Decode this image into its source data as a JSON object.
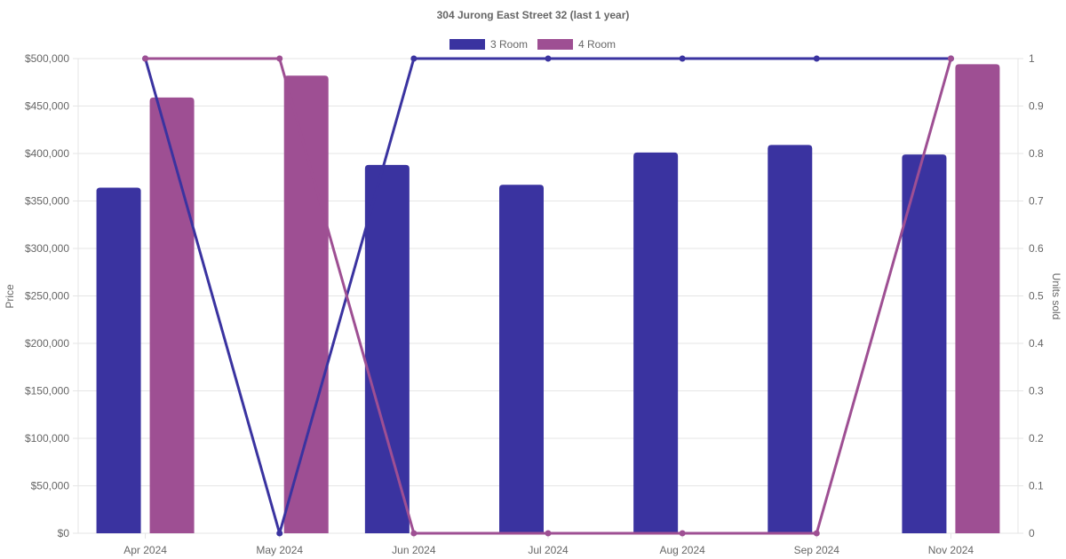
{
  "chart_data": {
    "type": "bar",
    "title": "304 Jurong East Street 32 (last 1 year)",
    "categories": [
      "Apr 2024",
      "May 2024",
      "Jun 2024",
      "Jul 2024",
      "Aug 2024",
      "Sep 2024",
      "Nov 2024"
    ],
    "left_axis": {
      "label": "Price",
      "ylim": [
        0,
        500000
      ],
      "ticks": [
        "$0",
        "$50,000",
        "$100,000",
        "$150,000",
        "$200,000",
        "$250,000",
        "$300,000",
        "$350,000",
        "$400,000",
        "$450,000",
        "$500,000"
      ]
    },
    "right_axis": {
      "label": "Units sold",
      "ylim": [
        0,
        1
      ],
      "ticks": [
        "0",
        "0.1",
        "0.2",
        "0.3",
        "0.4",
        "0.5",
        "0.6",
        "0.7",
        "0.8",
        "0.9",
        "1"
      ]
    },
    "legend": {
      "position": "top",
      "entries": [
        "3 Room",
        "4 Room"
      ]
    },
    "grid": true,
    "series": [
      {
        "name": "3 Room",
        "color": "#3a33a0",
        "price": [
          364000,
          null,
          388000,
          367000,
          401000,
          409000,
          399000
        ],
        "units_sold": [
          1,
          0,
          1,
          1,
          1,
          1,
          1
        ]
      },
      {
        "name": "4 Room",
        "color": "#9e4f93",
        "price": [
          459000,
          482000,
          null,
          null,
          null,
          null,
          494000
        ],
        "units_sold": [
          1,
          1,
          0,
          0,
          0,
          0,
          1
        ]
      }
    ]
  }
}
